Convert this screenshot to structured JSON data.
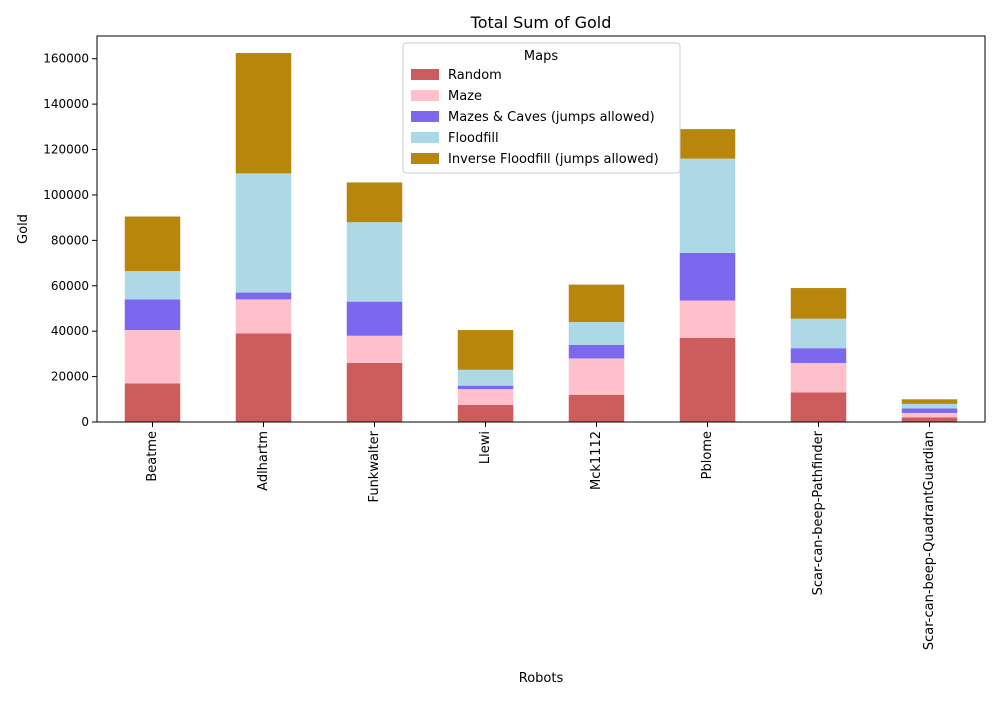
{
  "chart_data": {
    "type": "bar",
    "stacked": true,
    "title": "Total Sum of Gold",
    "xlabel": "Robots",
    "ylabel": "Gold",
    "ylim": [
      0,
      170000
    ],
    "yticks": [
      0,
      20000,
      40000,
      60000,
      80000,
      100000,
      120000,
      140000,
      160000
    ],
    "grid": false,
    "legend": {
      "title": "Maps",
      "placement": "top-center"
    },
    "categories": [
      "Beatme",
      "Adlhartm",
      "Funkwalter",
      "Llewi",
      "Mck1112",
      "Pblome",
      "Scar-can-beep-Pathfinder",
      "Scar-can-beep-QuadrantGuardian"
    ],
    "series": [
      {
        "name": "Random",
        "color": "#cd5c5c",
        "values": [
          17000,
          39000,
          26000,
          7500,
          12000,
          37000,
          13000,
          2000
        ]
      },
      {
        "name": "Maze",
        "color": "#ffc0cb",
        "values": [
          23500,
          15000,
          12000,
          7000,
          16000,
          16500,
          13000,
          2000
        ]
      },
      {
        "name": "Mazes & Caves (jumps allowed)",
        "color": "#7b68ee",
        "values": [
          13500,
          3000,
          15000,
          1500,
          6000,
          21000,
          6500,
          2000
        ]
      },
      {
        "name": "Floodfill",
        "color": "#add8e6",
        "values": [
          12500,
          52500,
          35000,
          7000,
          10000,
          41500,
          13000,
          2000
        ]
      },
      {
        "name": "Inverse Floodfill (jumps allowed)",
        "color": "#b8860b",
        "values": [
          24000,
          53000,
          17500,
          17500,
          16500,
          13000,
          13500,
          2000
        ]
      }
    ]
  }
}
